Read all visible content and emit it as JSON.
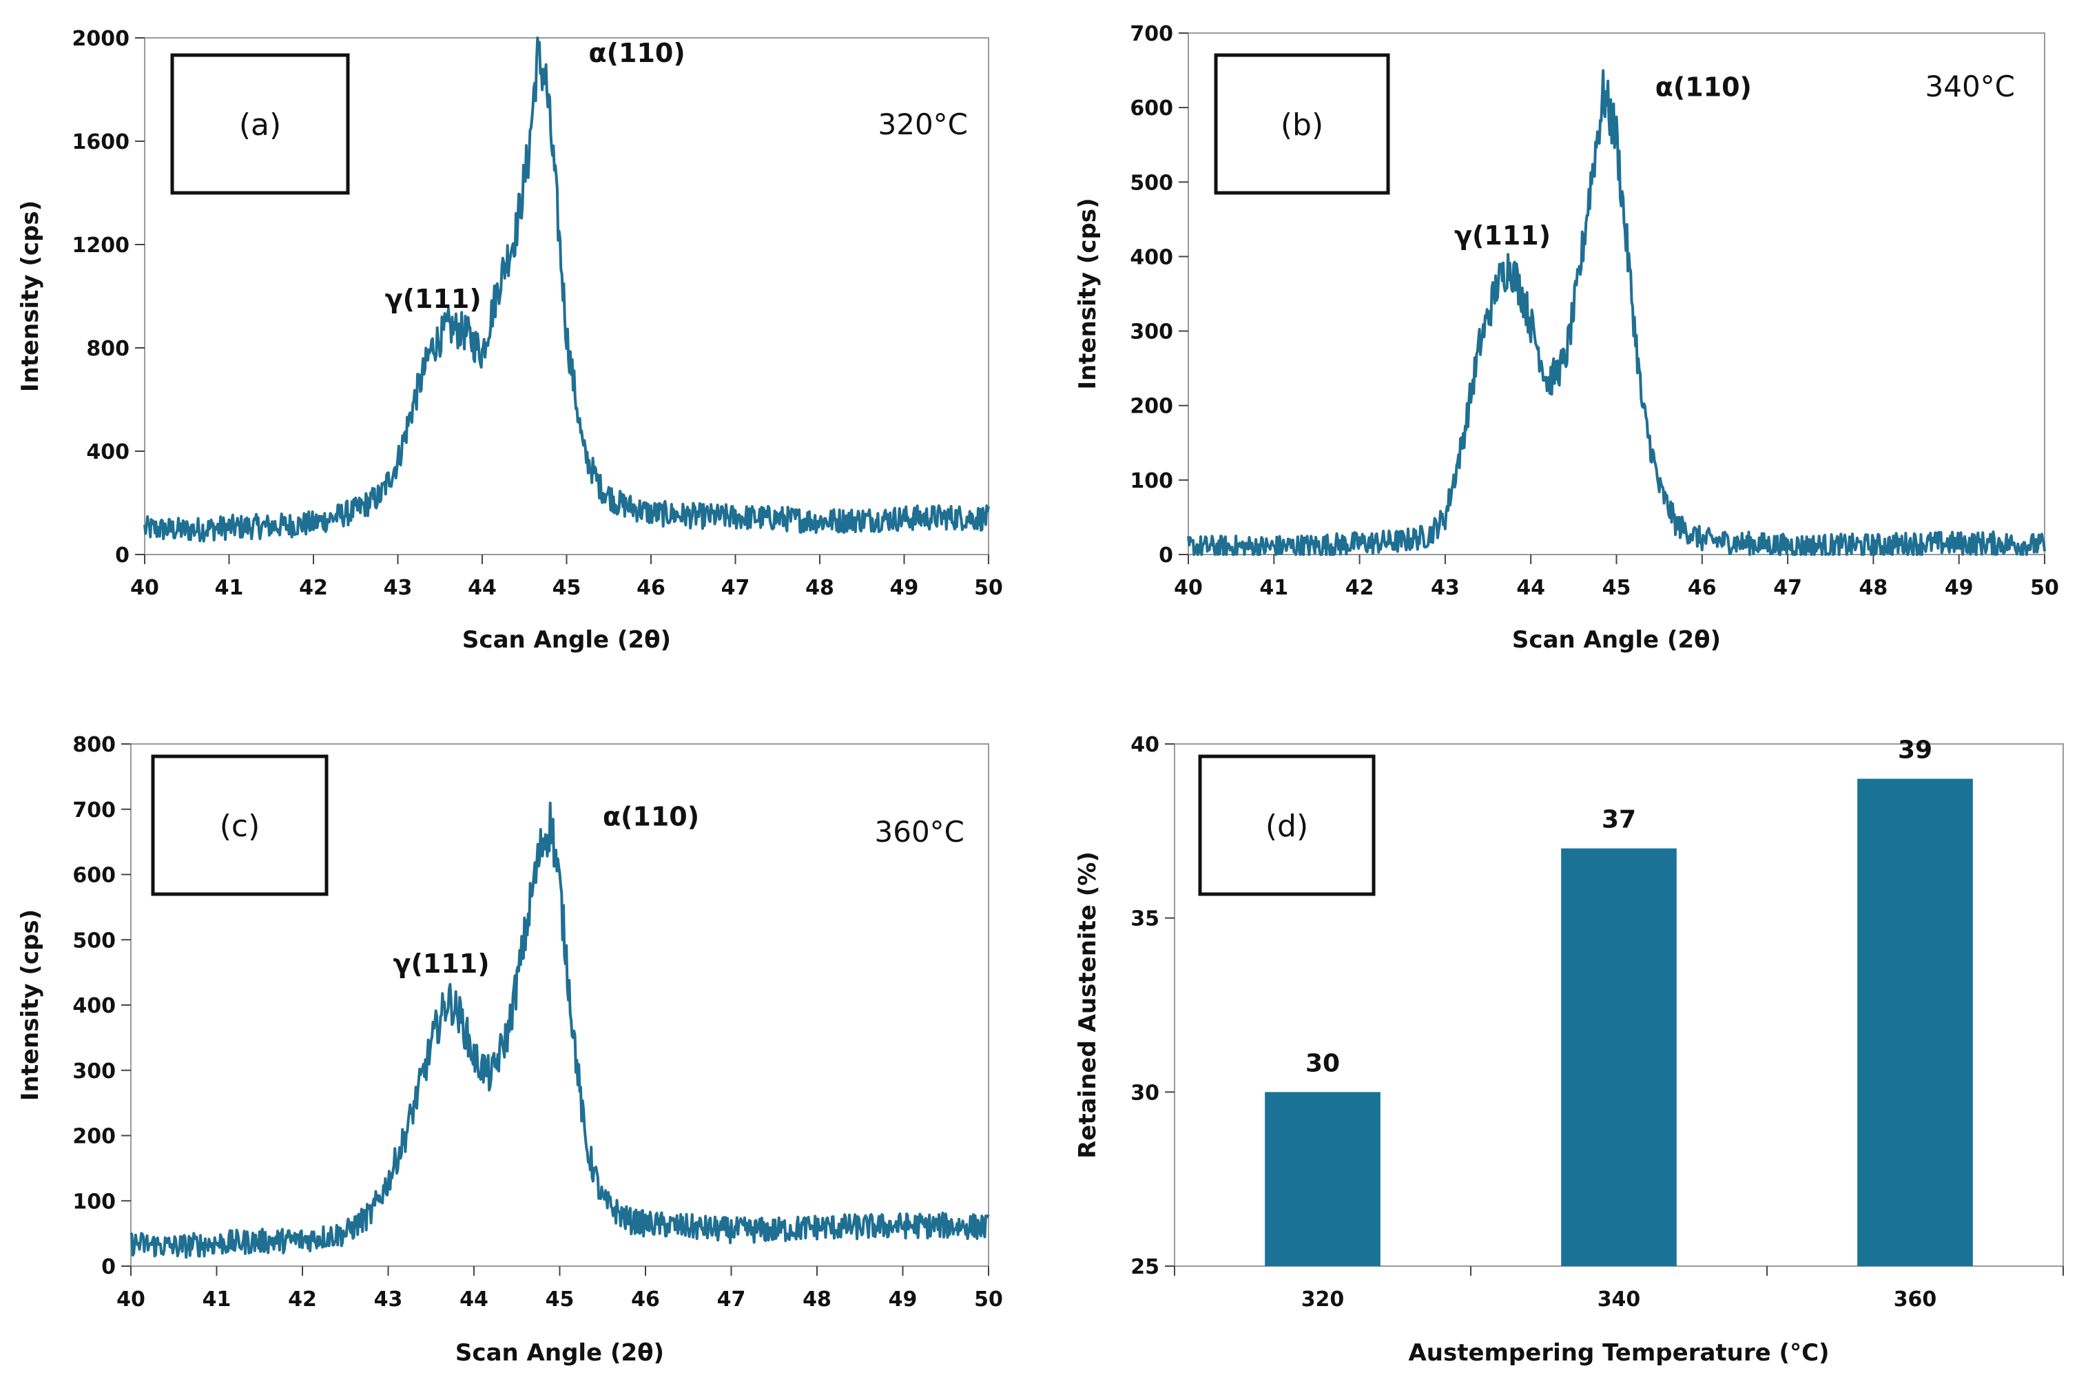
{
  "chart_data": [
    {
      "type": "line",
      "panel_label": "(a)",
      "condition_label": "320°C",
      "xlabel": "Scan Angle (2θ)",
      "ylabel": "Intensity (cps)",
      "xlim": [
        40,
        50
      ],
      "ylim": [
        0,
        2000
      ],
      "xticks": [
        40,
        41,
        42,
        43,
        44,
        45,
        46,
        47,
        48,
        49,
        50
      ],
      "yticks": [
        0,
        400,
        800,
        1200,
        1600,
        2000
      ],
      "grid": false,
      "color": "#1f6f93",
      "annotations": [
        {
          "text": "γ(111)",
          "x": 43.5,
          "y": 880
        },
        {
          "text": "α(110)",
          "x": 44.65,
          "y": 1920
        }
      ],
      "x": [
        40.0,
        40.5,
        41.0,
        41.5,
        42.0,
        42.5,
        42.8,
        43.0,
        43.2,
        43.4,
        43.6,
        43.8,
        44.0,
        44.2,
        44.4,
        44.55,
        44.65,
        44.75,
        44.85,
        45.0,
        45.2,
        45.4,
        45.6,
        46.0,
        46.5,
        47.0,
        47.5,
        48.0,
        48.5,
        49.0,
        49.5,
        50.0
      ],
      "y": [
        100,
        95,
        105,
        110,
        120,
        170,
        230,
        360,
        600,
        800,
        880,
        860,
        780,
        1050,
        1250,
        1550,
        1920,
        1850,
        1500,
        850,
        400,
        260,
        200,
        160,
        150,
        145,
        140,
        130,
        135,
        140,
        145,
        140
      ]
    },
    {
      "type": "line",
      "panel_label": "(b)",
      "condition_label": "340°C",
      "xlabel": "Scan Angle (2θ)",
      "ylabel": "Intensity (cps)",
      "xlim": [
        40,
        50
      ],
      "ylim": [
        0,
        700
      ],
      "xticks": [
        40,
        41,
        42,
        43,
        44,
        45,
        46,
        47,
        48,
        49,
        50
      ],
      "yticks": [
        0,
        100,
        200,
        300,
        400,
        500,
        600,
        700
      ],
      "grid": false,
      "color": "#1f6f93",
      "annotations": [
        {
          "text": "γ(111)",
          "x": 43.75,
          "y": 390
        },
        {
          "text": "α(110)",
          "x": 44.85,
          "y": 620
        }
      ],
      "x": [
        40.0,
        40.5,
        41.0,
        41.5,
        42.0,
        42.5,
        42.8,
        43.0,
        43.2,
        43.4,
        43.6,
        43.75,
        43.9,
        44.05,
        44.2,
        44.4,
        44.55,
        44.7,
        44.85,
        45.0,
        45.15,
        45.3,
        45.5,
        45.7,
        46.0,
        46.5,
        47.0,
        47.5,
        48.0,
        48.5,
        49.0,
        49.5,
        50.0
      ],
      "y": [
        10,
        10,
        10,
        12,
        15,
        18,
        25,
        50,
        150,
        280,
        360,
        390,
        350,
        290,
        230,
        260,
        360,
        500,
        620,
        560,
        380,
        200,
        90,
        40,
        20,
        15,
        12,
        12,
        12,
        15,
        15,
        15,
        12
      ]
    },
    {
      "type": "line",
      "panel_label": "(c)",
      "condition_label": "360°C",
      "xlabel": "Scan Angle (2θ)",
      "ylabel": "Intensity (cps)",
      "xlim": [
        40,
        50
      ],
      "ylim": [
        0,
        800
      ],
      "xticks": [
        40,
        41,
        42,
        43,
        44,
        45,
        46,
        47,
        48,
        49,
        50
      ],
      "yticks": [
        0,
        100,
        200,
        300,
        400,
        500,
        600,
        700,
        800
      ],
      "grid": false,
      "color": "#1f6f93",
      "annotations": [
        {
          "text": "γ(111)",
          "x": 43.7,
          "y": 420
        },
        {
          "text": "α(110)",
          "x": 44.9,
          "y": 680
        }
      ],
      "x": [
        40.0,
        40.5,
        41.0,
        41.5,
        42.0,
        42.5,
        42.8,
        43.0,
        43.2,
        43.4,
        43.55,
        43.7,
        43.85,
        44.0,
        44.2,
        44.4,
        44.55,
        44.7,
        44.8,
        44.9,
        45.0,
        45.15,
        45.3,
        45.5,
        45.8,
        46.0,
        46.5,
        47.0,
        47.5,
        48.0,
        48.5,
        49.0,
        49.5,
        50.0
      ],
      "y": [
        35,
        30,
        35,
        38,
        40,
        50,
        80,
        130,
        200,
        290,
        360,
        410,
        380,
        320,
        290,
        360,
        470,
        590,
        650,
        680,
        580,
        370,
        190,
        100,
        70,
        65,
        60,
        55,
        55,
        60,
        60,
        62,
        62,
        60
      ]
    },
    {
      "type": "bar",
      "panel_label": "(d)",
      "xlabel": "Austempering Temperature (°C)",
      "ylabel": "Retained Austenite (%)",
      "categories": [
        "320",
        "340",
        "360"
      ],
      "values": [
        30,
        37,
        39
      ],
      "data_labels": [
        "30",
        "37",
        "39"
      ],
      "ylim": [
        25,
        40
      ],
      "yticks": [
        25,
        30,
        35,
        40
      ],
      "grid": false,
      "color": "#1a7396"
    }
  ]
}
